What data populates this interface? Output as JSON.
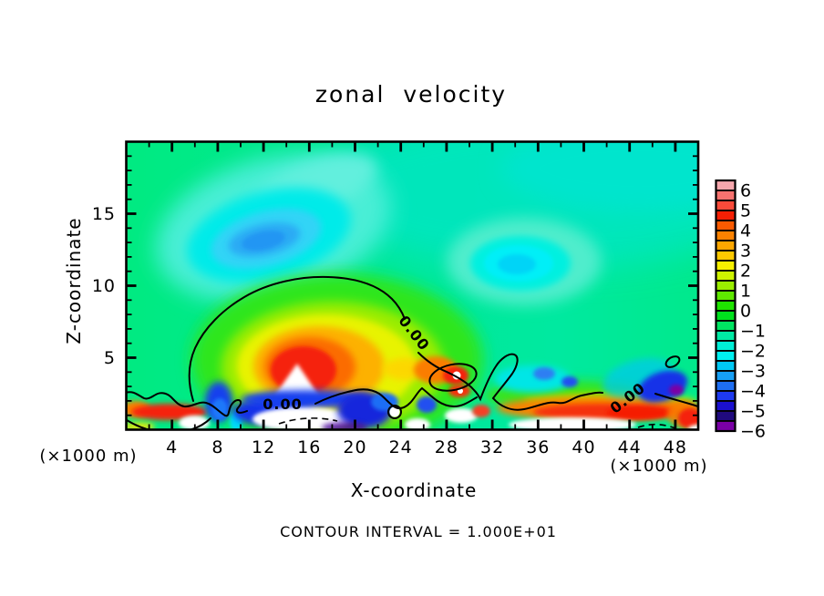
{
  "title": "zonal velocity",
  "axes": {
    "x": {
      "label": "X-coordinate",
      "tick_labels": [
        "4",
        "8",
        "12",
        "16",
        "20",
        "24",
        "28",
        "32",
        "36",
        "40",
        "44",
        "48"
      ],
      "tick_values": [
        4,
        8,
        12,
        16,
        20,
        24,
        28,
        32,
        36,
        40,
        44,
        48
      ],
      "minor_step": 2,
      "range": [
        0,
        50
      ],
      "unit_left": "(×1000 m)",
      "unit_right": "(×1000 m)"
    },
    "z": {
      "label": "Z-coordinate",
      "tick_labels": [
        "5",
        "10",
        "15"
      ],
      "tick_values": [
        5,
        10,
        15
      ],
      "minor_step": 1,
      "range": [
        0,
        20
      ]
    }
  },
  "colorbar": {
    "labels": [
      "6",
      "5",
      "4",
      "3",
      "2",
      "1",
      "0",
      "−1",
      "−2",
      "−3",
      "−4",
      "−5",
      "−6"
    ],
    "colors_top_to_bottom": [
      "#f6a7ad",
      "#f7726f",
      "#fa4b3a",
      "#f51f04",
      "#fa5a00",
      "#fb8200",
      "#fda700",
      "#fdc900",
      "#f7f000",
      "#cef300",
      "#9bee00",
      "#5fe800",
      "#1fe300",
      "#00e11e",
      "#00e562",
      "#00eaa4",
      "#00efd7",
      "#00f1f1",
      "#00c9f5",
      "#169ff5",
      "#1e6ef2",
      "#1e3af0",
      "#1b10cf",
      "#200a7d",
      "#7a00a6"
    ]
  },
  "contour": {
    "labels": [
      "0.00",
      "0.00",
      "0.00"
    ],
    "interval_text": "CONTOUR INTERVAL = 1.000E+01"
  },
  "chart_data": {
    "type": "heatmap",
    "subtype": "filled_contour_cross_section",
    "title": "zonal velocity",
    "xlabel": "X-coordinate",
    "ylabel": "Z-coordinate",
    "axis_unit_labels": [
      "(×1000 m)",
      "(×1000 m)"
    ],
    "x_range": [
      0,
      50
    ],
    "z_range": [
      0,
      20
    ],
    "x_major_ticks": [
      4,
      8,
      12,
      16,
      20,
      24,
      28,
      32,
      36,
      40,
      44,
      48
    ],
    "x_minor_step": 2,
    "z_major_ticks": [
      5,
      10,
      15
    ],
    "z_minor_step": 1,
    "grid": false,
    "legend_position": "right-colorbar",
    "colorbar": {
      "tick_labels": [
        6,
        5,
        4,
        3,
        2,
        1,
        0,
        -1,
        -2,
        -3,
        -4,
        -5,
        -6
      ],
      "min": -6,
      "max": 6,
      "tick_step": 1,
      "n_cells": 25,
      "cell_value_step": 0.5,
      "colors_top_to_bottom": [
        "#f6a7ad",
        "#f7726f",
        "#fa4b3a",
        "#f51f04",
        "#fa5a00",
        "#fb8200",
        "#fda700",
        "#fdc900",
        "#f7f000",
        "#cef300",
        "#9bee00",
        "#5fe800",
        "#1fe300",
        "#00e11e",
        "#00e562",
        "#00eaa4",
        "#00efd7",
        "#00f1f1",
        "#00c9f5",
        "#169ff5",
        "#1e6ef2",
        "#1e3af0",
        "#1b10cf",
        "#200a7d",
        "#7a00a6"
      ]
    },
    "contour_interval": "1.000E+01",
    "zero_contour_labels": [
      "0.00",
      "0.00",
      "0.00"
    ],
    "negative_contours_dashed": true,
    "features": [
      {
        "name": "upper-level-cold-minimum",
        "x": 12,
        "z": 13,
        "approx_value": -3,
        "color": "blue core in cyan pool"
      },
      {
        "name": "secondary-cyan-minimum",
        "x": 34,
        "z": 11.5,
        "approx_value": -2
      },
      {
        "name": "warm-dome-maximum",
        "x": 15,
        "z": 4,
        "approx_value": 6,
        "note": "white saturated core above +6"
      },
      {
        "name": "zero-contour-dome",
        "x_extent": [
          6,
          31
        ],
        "z_apex": 10.5
      },
      {
        "name": "turbulent-surface-layer",
        "z_extent": [
          0,
          2.5
        ],
        "note": "alternating ±extremes with white saturation"
      },
      {
        "name": "deep-blue-purple-spot",
        "x": 47.5,
        "z": 3,
        "approx_value": -6
      },
      {
        "name": "background-field",
        "approx_value": -0.5,
        "note": "spring-green/teal, weakly negative aloft"
      }
    ]
  }
}
